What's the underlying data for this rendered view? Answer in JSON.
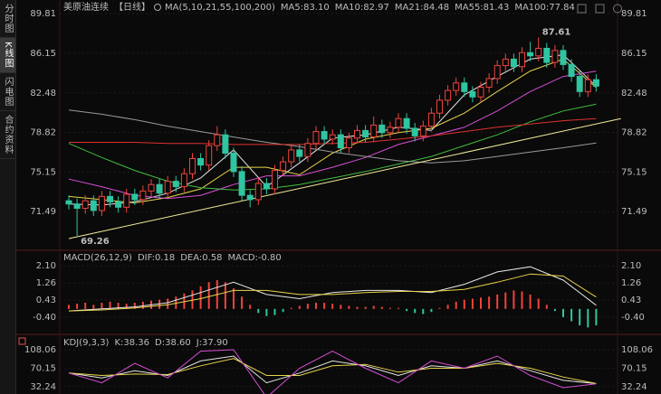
{
  "sidebar": [
    "分时图",
    "K线图",
    "闪电图",
    "合约资料"
  ],
  "sidebar_selected": 1,
  "chart_data": [
    {
      "type": "candlestick",
      "title": "美原油连续",
      "period": "【日线】",
      "indicator": "MA(5,10,21,55,100,200)",
      "ylim": [
        68.5,
        90.4
      ],
      "yticks": [
        89.81,
        86.15,
        82.48,
        78.82,
        75.15,
        71.49
      ],
      "grid": true,
      "up_color": "#f0433d",
      "down_color": "#2fc5a0",
      "open": [
        72.5,
        72.2,
        71.8,
        72.5,
        71.6,
        72.9,
        72.4,
        71.9,
        73.1,
        72.6,
        73.4,
        74.0,
        73.2,
        74.3,
        73.8,
        75.0,
        76.4,
        75.8,
        77.6,
        78.6,
        76.9,
        75.2,
        73.0,
        72.6,
        74.1,
        73.6,
        75.3,
        76.1,
        77.2,
        76.6,
        77.8,
        78.9,
        78.2,
        78.6,
        77.4,
        78.3,
        79.0,
        78.4,
        79.5,
        78.8,
        79.3,
        80.1,
        79.2,
        78.5,
        79.4,
        80.6,
        81.8,
        82.7,
        83.4,
        82.6,
        82.1,
        83.0,
        83.8,
        85.0,
        85.6,
        84.9,
        86.2,
        85.9,
        86.6,
        85.3,
        86.4,
        85.1,
        84.0,
        82.6,
        83.7
      ],
      "high": [
        73.0,
        72.7,
        73.0,
        73.0,
        73.4,
        73.4,
        72.9,
        73.6,
        73.6,
        73.9,
        74.5,
        74.5,
        74.8,
        74.8,
        75.5,
        76.9,
        76.9,
        78.1,
        79.4,
        79.1,
        77.4,
        75.7,
        73.5,
        74.6,
        74.6,
        75.8,
        76.6,
        77.7,
        77.7,
        78.3,
        79.4,
        79.4,
        79.1,
        79.1,
        78.8,
        79.5,
        79.5,
        80.3,
        80.0,
        79.8,
        80.6,
        80.6,
        79.7,
        79.9,
        81.1,
        82.3,
        83.2,
        83.9,
        83.9,
        83.1,
        83.5,
        84.3,
        85.5,
        86.1,
        86.1,
        86.7,
        87.2,
        87.61,
        87.1,
        86.9,
        86.9,
        85.6,
        84.5,
        84.2,
        84.2
      ],
      "low": [
        71.7,
        69.26,
        71.3,
        71.1,
        71.1,
        71.9,
        71.4,
        71.4,
        72.1,
        72.1,
        72.9,
        72.7,
        72.7,
        73.3,
        73.3,
        74.5,
        75.3,
        75.3,
        77.1,
        76.4,
        74.7,
        72.5,
        71.9,
        72.1,
        73.1,
        73.1,
        74.8,
        75.6,
        76.1,
        76.1,
        77.3,
        77.7,
        77.7,
        76.9,
        76.9,
        77.8,
        77.9,
        77.9,
        78.3,
        78.3,
        78.8,
        78.7,
        78.0,
        78.0,
        78.9,
        80.1,
        81.3,
        82.2,
        82.1,
        81.6,
        81.6,
        82.5,
        83.3,
        84.5,
        84.4,
        84.4,
        85.4,
        85.4,
        84.8,
        84.8,
        84.6,
        83.5,
        82.1,
        82.1,
        82.6
      ],
      "close": [
        72.2,
        71.8,
        72.5,
        71.6,
        72.9,
        72.4,
        71.9,
        73.1,
        72.6,
        73.4,
        74.0,
        73.2,
        74.3,
        73.8,
        75.0,
        76.4,
        75.8,
        77.6,
        78.6,
        76.9,
        75.2,
        73.0,
        72.6,
        74.1,
        73.6,
        75.3,
        76.1,
        77.2,
        76.6,
        77.8,
        78.9,
        78.2,
        78.6,
        77.4,
        78.3,
        79.0,
        78.4,
        79.5,
        78.8,
        79.3,
        80.1,
        79.2,
        78.5,
        79.4,
        80.6,
        81.8,
        82.7,
        83.4,
        82.6,
        82.1,
        83.0,
        83.8,
        85.0,
        85.6,
        84.9,
        86.2,
        85.9,
        86.6,
        85.3,
        86.4,
        85.1,
        84.0,
        82.6,
        83.7,
        83.1
      ],
      "series": [
        {
          "name": "MA5:83.10",
          "color": "#e6e6e6",
          "x": [
            0,
            4,
            8,
            12,
            16,
            20,
            24,
            28,
            32,
            36,
            40,
            44,
            48,
            52,
            56,
            60,
            64
          ],
          "values": [
            72.2,
            72.1,
            72.4,
            73.2,
            74.6,
            77.2,
            73.8,
            76.0,
            78.3,
            78.6,
            79.3,
            79.0,
            82.3,
            84.0,
            85.6,
            86.0,
            83.1
          ]
        },
        {
          "name": "MA10:82.97",
          "color": "#e8d44d",
          "x": [
            0,
            4,
            8,
            12,
            16,
            20,
            24,
            28,
            32,
            36,
            40,
            44,
            48,
            52,
            56,
            60,
            64
          ],
          "values": [
            72.9,
            72.6,
            72.3,
            72.8,
            73.6,
            75.6,
            75.6,
            74.9,
            76.9,
            78.2,
            78.8,
            79.2,
            80.6,
            82.6,
            84.5,
            85.6,
            82.97
          ]
        },
        {
          "name": "MA21:84.48",
          "color": "#d64fd6",
          "x": [
            0,
            4,
            8,
            12,
            16,
            20,
            24,
            28,
            32,
            36,
            40,
            44,
            48,
            52,
            56,
            60,
            64
          ],
          "values": [
            74.5,
            73.8,
            73.0,
            72.7,
            73.0,
            74.0,
            74.8,
            74.8,
            75.6,
            76.5,
            77.7,
            78.5,
            79.3,
            80.8,
            82.6,
            84.0,
            84.48
          ]
        },
        {
          "name": "MA55:81.43",
          "color": "#3fbf3f",
          "x": [
            0,
            4,
            8,
            12,
            16,
            20,
            24,
            28,
            32,
            36,
            40,
            44,
            48,
            52,
            56,
            60,
            64
          ],
          "values": [
            77.8,
            76.5,
            75.3,
            74.3,
            73.7,
            73.5,
            73.6,
            74.0,
            74.6,
            75.2,
            75.9,
            76.6,
            77.6,
            78.6,
            79.8,
            80.8,
            81.43
          ]
        },
        {
          "name": "MA100:77.84",
          "color": "#9a9a9a",
          "x": [
            0,
            4,
            8,
            12,
            16,
            20,
            24,
            28,
            32,
            36,
            40,
            44,
            48,
            52,
            56,
            60,
            64
          ],
          "values": [
            80.9,
            80.5,
            80.0,
            79.4,
            78.9,
            78.4,
            77.9,
            77.5,
            77.0,
            76.6,
            76.2,
            76.0,
            76.2,
            76.6,
            77.0,
            77.4,
            77.84
          ]
        },
        {
          "color": "#e03030",
          "x": [
            0,
            4,
            8,
            12,
            16,
            20,
            24,
            28,
            32,
            36,
            40,
            44,
            48,
            52,
            56,
            60,
            64
          ],
          "values": [
            77.9,
            77.9,
            77.9,
            77.8,
            77.8,
            77.7,
            77.7,
            77.7,
            77.8,
            77.9,
            78.2,
            78.5,
            78.9,
            79.3,
            79.6,
            79.9,
            80.1
          ]
        }
      ],
      "trendline": {
        "color": "#f2ec9a",
        "x": [
          0,
          67
        ],
        "values": [
          69.0,
          80.1
        ]
      },
      "annotations": [
        {
          "x": 57,
          "value": 87.61,
          "color": "#ff4d4d"
        },
        {
          "x": 1,
          "value": 69.26,
          "color": "#3fd07f"
        }
      ]
    },
    {
      "type": "macd",
      "title": "MACD(26,12,9)",
      "ylim": [
        -1.15,
        2.5
      ],
      "yticks": [
        {
          "value": 2.1,
          "label": "2.10"
        },
        1.26,
        0.43,
        {
          "value": -0.4,
          "label": "-0.40"
        }
      ],
      "series": [
        {
          "name": "DIF:0.18",
          "color": "#e6e6e6",
          "x": [
            0,
            4,
            8,
            12,
            16,
            20,
            24,
            28,
            32,
            36,
            40,
            44,
            48,
            52,
            56,
            60,
            64
          ],
          "values": [
            -0.1,
            0.0,
            0.1,
            0.3,
            0.8,
            1.3,
            0.7,
            0.5,
            0.8,
            0.9,
            0.9,
            0.8,
            1.2,
            1.8,
            2.05,
            1.4,
            0.18
          ]
        },
        {
          "name": "DEA:0.58",
          "color": "#e8d44d",
          "x": [
            0,
            4,
            8,
            12,
            16,
            20,
            24,
            28,
            32,
            36,
            40,
            44,
            48,
            52,
            56,
            60,
            64
          ],
          "values": [
            -0.1,
            -0.05,
            0.05,
            0.2,
            0.5,
            0.9,
            0.9,
            0.7,
            0.7,
            0.8,
            0.85,
            0.85,
            0.95,
            1.3,
            1.7,
            1.6,
            0.58
          ]
        }
      ],
      "bars": {
        "name": "MACD:-0.80",
        "color": "#d64fd6",
        "up_color": "#f0433d",
        "down_color": "#2fc5a0",
        "values": [
          0.2,
          0.25,
          0.3,
          0.2,
          0.3,
          0.35,
          0.3,
          0.25,
          0.3,
          0.35,
          0.4,
          0.45,
          0.5,
          0.6,
          0.75,
          0.9,
          1.1,
          1.3,
          1.4,
          1.3,
          1.0,
          0.6,
          0.2,
          -0.2,
          -0.35,
          -0.3,
          -0.15,
          0.05,
          0.15,
          0.25,
          0.3,
          0.3,
          0.25,
          0.2,
          0.15,
          0.1,
          0.1,
          0.15,
          0.1,
          0.05,
          0.05,
          -0.1,
          -0.2,
          -0.25,
          -0.15,
          0.05,
          0.2,
          0.35,
          0.45,
          0.5,
          0.55,
          0.6,
          0.7,
          0.8,
          0.9,
          0.85,
          0.7,
          0.5,
          0.2,
          -0.1,
          -0.4,
          -0.6,
          -0.8,
          -0.9,
          -0.8
        ]
      }
    },
    {
      "type": "kdj",
      "title": "KDJ(9,3,3)",
      "ylim": [
        17,
        121
      ],
      "yticks": [
        108.06,
        70.15,
        32.24
      ],
      "series": [
        {
          "name": "K:38.36",
          "color": "#e6e6e6",
          "x": [
            0,
            4,
            8,
            12,
            16,
            20,
            24,
            28,
            32,
            36,
            40,
            44,
            48,
            52,
            56,
            60,
            64
          ],
          "values": [
            60,
            50,
            65,
            55,
            85,
            95,
            40,
            60,
            85,
            75,
            55,
            75,
            70,
            85,
            65,
            45,
            38.36
          ]
        },
        {
          "name": "D:38.60",
          "color": "#e8d44d",
          "x": [
            0,
            4,
            8,
            12,
            16,
            20,
            24,
            28,
            32,
            36,
            40,
            44,
            48,
            52,
            56,
            60,
            64
          ],
          "values": [
            60,
            55,
            58,
            57,
            75,
            90,
            55,
            55,
            75,
            78,
            62,
            70,
            70,
            80,
            70,
            52,
            38.6
          ]
        },
        {
          "name": "J:37.90",
          "color": "#d64fd6",
          "x": [
            0,
            4,
            8,
            12,
            16,
            20,
            24,
            28,
            32,
            36,
            40,
            44,
            48,
            52,
            56,
            60,
            64
          ],
          "values": [
            60,
            40,
            80,
            50,
            105,
            108,
            10,
            70,
            105,
            70,
            40,
            85,
            70,
            95,
            55,
            30,
            37.9
          ]
        }
      ]
    }
  ]
}
